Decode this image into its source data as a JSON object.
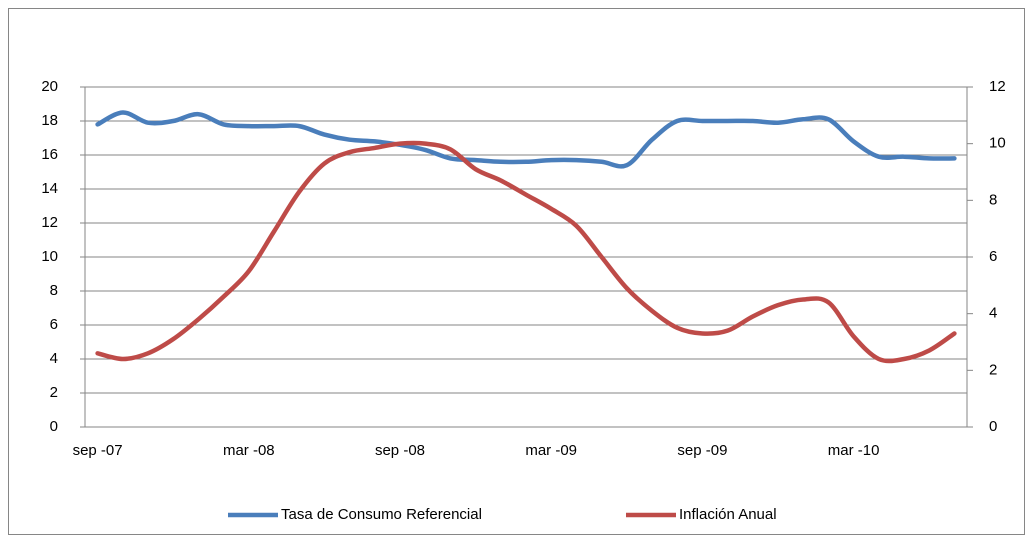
{
  "chart_data": {
    "type": "line",
    "categories": [
      "sep -07",
      null,
      null,
      null,
      null,
      null,
      "mar -08",
      null,
      null,
      null,
      null,
      null,
      "sep -08",
      null,
      null,
      null,
      null,
      null,
      "mar -09",
      null,
      null,
      null,
      null,
      null,
      "sep -09",
      null,
      null,
      null,
      null,
      null,
      "mar -10",
      null,
      null,
      null,
      null
    ],
    "series": [
      {
        "name": "Tasa de Consumo Referencial",
        "color": "#4a7ebb",
        "values": [
          17.8,
          18.5,
          17.9,
          18.0,
          18.4,
          17.8,
          17.7,
          17.7,
          17.7,
          17.2,
          16.9,
          16.8,
          16.6,
          16.3,
          15.8,
          15.7,
          15.6,
          15.6,
          15.7,
          15.7,
          15.6,
          15.4,
          16.9,
          18.0,
          18.0,
          18.0,
          18.0,
          17.9,
          18.1,
          18.1,
          16.8,
          15.9,
          15.9,
          15.8,
          15.8
        ]
      },
      {
        "name": "Inflación Anual",
        "color": "#be4b48",
        "axis": "y2",
        "values": [
          2.6,
          2.4,
          2.6,
          3.1,
          3.8,
          4.6,
          5.5,
          6.9,
          8.3,
          9.3,
          9.7,
          9.85,
          10.0,
          10.0,
          9.8,
          9.1,
          8.7,
          8.2,
          7.7,
          7.1,
          6.0,
          4.9,
          4.1,
          3.5,
          3.3,
          3.4,
          3.9,
          4.3,
          4.5,
          4.4,
          3.2,
          2.4,
          2.4,
          2.7,
          3.3
        ]
      }
    ],
    "ylim": [
      0,
      20
    ],
    "yticks": [
      0,
      2,
      4,
      6,
      8,
      10,
      12,
      14,
      16,
      18,
      20
    ],
    "y2lim": [
      0,
      12
    ],
    "y2ticks": [
      0,
      2,
      4,
      6,
      8,
      10,
      12
    ],
    "grid": true,
    "legend": "bottom"
  }
}
